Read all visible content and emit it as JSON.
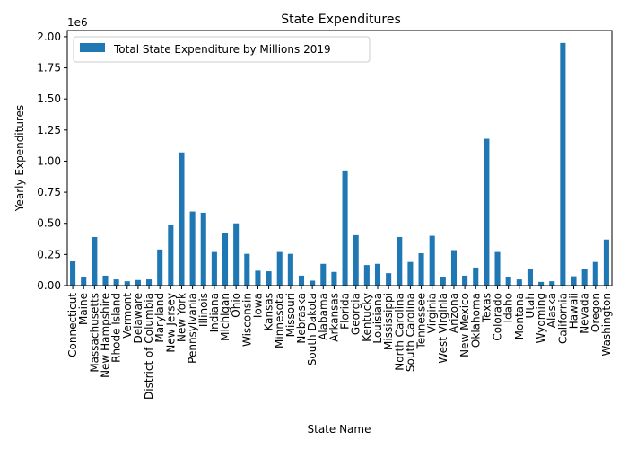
{
  "chart_data": {
    "type": "bar",
    "title": "State Expenditures",
    "xlabel": "State Name",
    "ylabel": "Yearly Expenditures",
    "y_offset_label": "1e6",
    "ylim": [
      0,
      2050000
    ],
    "y_ticks": [
      0,
      250000,
      500000,
      750000,
      1000000,
      1250000,
      1500000,
      1750000,
      2000000
    ],
    "y_tick_labels": [
      "0.00",
      "0.25",
      "0.50",
      "0.75",
      "1.00",
      "1.25",
      "1.50",
      "1.75",
      "2.00"
    ],
    "legend": {
      "location": "upper-left"
    },
    "bar_color": "#1f77b4",
    "series": [
      {
        "name": "Total State Expenditure by Millions 2019",
        "values": [
          195000,
          65000,
          390000,
          80000,
          50000,
          35000,
          45000,
          50000,
          290000,
          485000,
          1070000,
          595000,
          585000,
          270000,
          420000,
          500000,
          255000,
          120000,
          115000,
          270000,
          255000,
          80000,
          40000,
          175000,
          110000,
          925000,
          405000,
          165000,
          175000,
          100000,
          390000,
          190000,
          260000,
          400000,
          70000,
          285000,
          80000,
          145000,
          1180000,
          270000,
          65000,
          50000,
          130000,
          30000,
          35000,
          1950000,
          75000,
          135000,
          190000,
          370000
        ]
      }
    ],
    "categories": [
      "Connecticut",
      "Maine",
      "Massachusetts",
      "New Hampshire",
      "Rhode Island",
      "Vermont",
      "Delaware",
      "District of Columbia",
      "Maryland",
      "New Jersey",
      "New York",
      "Pennsylvania",
      "Illinois",
      "Indiana",
      "Michigan",
      "Ohio",
      "Wisconsin",
      "Iowa",
      "Kansas",
      "Minnesota",
      "Missouri",
      "Nebraska",
      "South Dakota",
      "Alabama",
      "Arkansas",
      "Florida",
      "Georgia",
      "Kentucky",
      "Louisiana",
      "Mississippi",
      "North Carolina",
      "South Carolina",
      "Tennessee",
      "Virginia",
      "West Virginia",
      "Arizona",
      "New Mexico",
      "Oklahoma",
      "Texas",
      "Colorado",
      "Idaho",
      "Montana",
      "Utah",
      "Wyoming",
      "Alaska",
      "California",
      "Hawaii",
      "Nevada",
      "Oregon",
      "Washington"
    ]
  }
}
